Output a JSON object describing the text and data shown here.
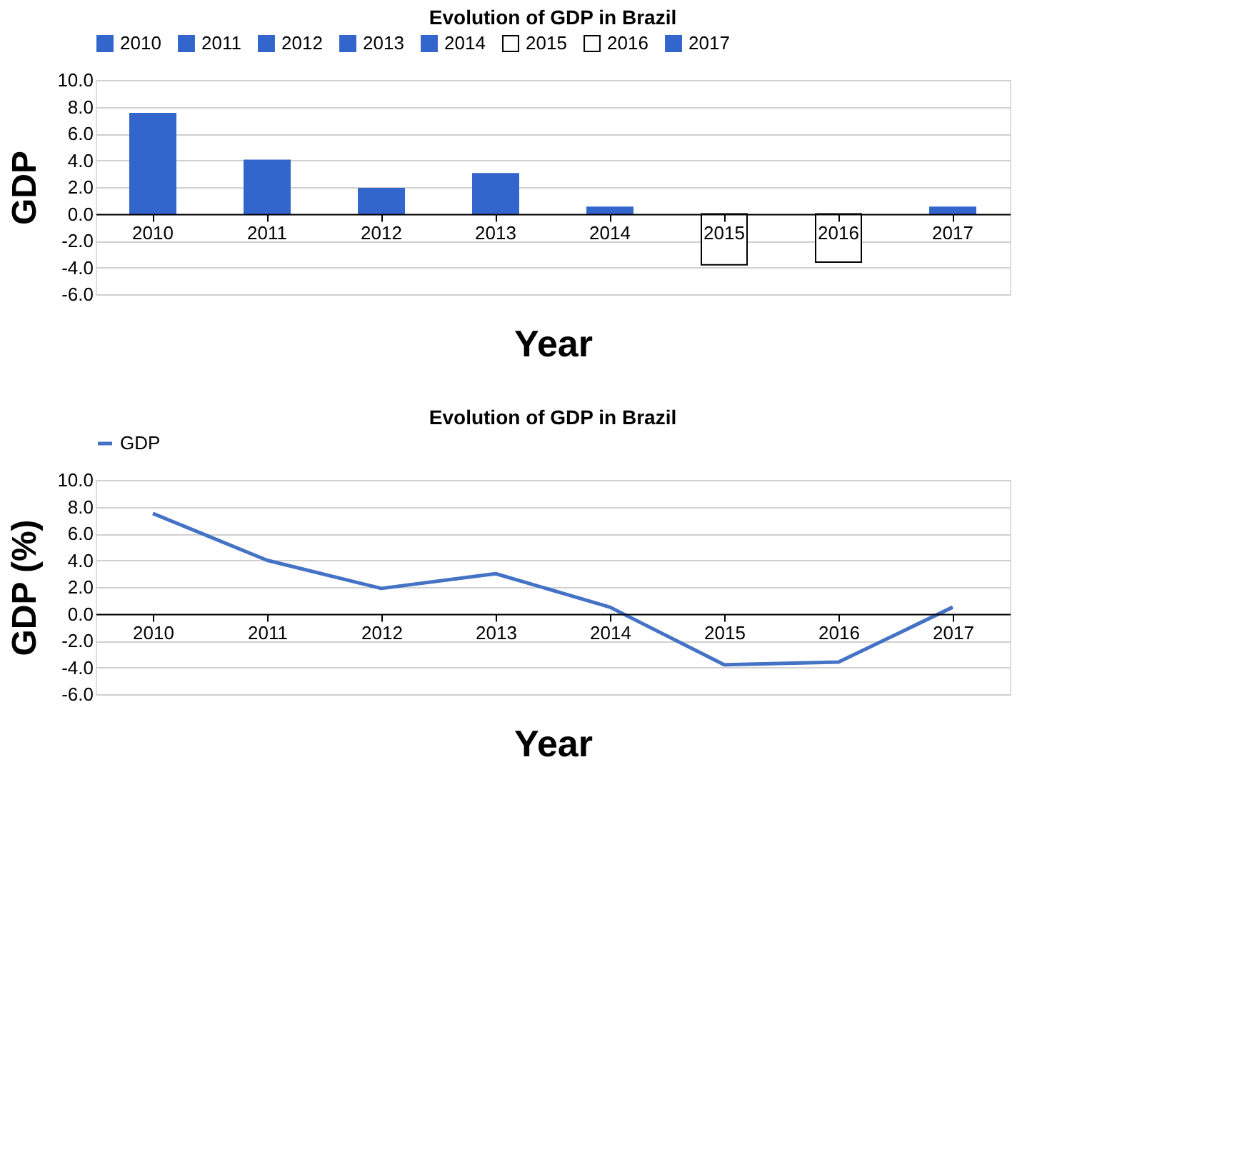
{
  "chart_data": [
    {
      "type": "bar",
      "title": "Evolution of GDP in Brazil",
      "xlabel": "Year",
      "ylabel": "GDP",
      "categories": [
        "2010",
        "2011",
        "2012",
        "2013",
        "2014",
        "2015",
        "2016",
        "2017"
      ],
      "series": [
        {
          "name": "2010",
          "color": "#3366cc",
          "values": [
            7.5,
            null,
            null,
            null,
            null,
            null,
            null,
            null
          ]
        },
        {
          "name": "2011",
          "color": "#3366cc",
          "values": [
            null,
            4.0,
            null,
            null,
            null,
            null,
            null,
            null
          ]
        },
        {
          "name": "2012",
          "color": "#3366cc",
          "values": [
            null,
            null,
            1.9,
            null,
            null,
            null,
            null,
            null
          ]
        },
        {
          "name": "2013",
          "color": "#3366cc",
          "values": [
            null,
            null,
            null,
            3.0,
            null,
            null,
            null,
            null
          ]
        },
        {
          "name": "2014",
          "color": "#3366cc",
          "values": [
            null,
            null,
            null,
            null,
            0.5,
            null,
            null,
            null
          ]
        },
        {
          "name": "2015",
          "color": "#ffffff",
          "values": [
            null,
            null,
            null,
            null,
            null,
            -3.8,
            null,
            null
          ]
        },
        {
          "name": "2016",
          "color": "#ffffff",
          "values": [
            null,
            null,
            null,
            null,
            null,
            null,
            -3.6,
            null
          ]
        },
        {
          "name": "2017",
          "color": "#3366cc",
          "values": [
            null,
            null,
            null,
            null,
            null,
            null,
            null,
            0.5
          ]
        }
      ],
      "ylim": [
        -6,
        10
      ],
      "yticks": [
        {
          "value": -6,
          "label": "-6.0"
        },
        {
          "value": -4,
          "label": "-4.0"
        },
        {
          "value": -2,
          "label": "-2.0"
        },
        {
          "value": 0,
          "label": "0.0"
        },
        {
          "value": 2,
          "label": "2.0"
        },
        {
          "value": 4,
          "label": "4.0"
        },
        {
          "value": 6,
          "label": "6.0"
        },
        {
          "value": 8,
          "label": "8.0"
        },
        {
          "value": 10,
          "label": "10.0"
        }
      ],
      "grid": "y",
      "legend": "top"
    },
    {
      "type": "line",
      "title": "Evolution of GDP in Brazil",
      "xlabel": "Year",
      "ylabel": "GDP (%)",
      "categories": [
        "2010",
        "2011",
        "2012",
        "2013",
        "2014",
        "2015",
        "2016",
        "2017"
      ],
      "series": [
        {
          "name": "GDP",
          "color": "#4472c4",
          "values": [
            7.5,
            4.0,
            1.9,
            3.0,
            0.5,
            -3.8,
            -3.6,
            0.5
          ]
        }
      ],
      "ylim": [
        -6,
        10
      ],
      "yticks": [
        {
          "value": -6,
          "label": "-6.0"
        },
        {
          "value": -4,
          "label": "-4.0"
        },
        {
          "value": -2,
          "label": "-2.0"
        },
        {
          "value": 0,
          "label": "0.0"
        },
        {
          "value": 2,
          "label": "2.0"
        },
        {
          "value": 4,
          "label": "4.0"
        },
        {
          "value": 6,
          "label": "6.0"
        },
        {
          "value": 8,
          "label": "8.0"
        },
        {
          "value": 10,
          "label": "10.0"
        }
      ],
      "grid": "y",
      "legend": "top"
    }
  ]
}
